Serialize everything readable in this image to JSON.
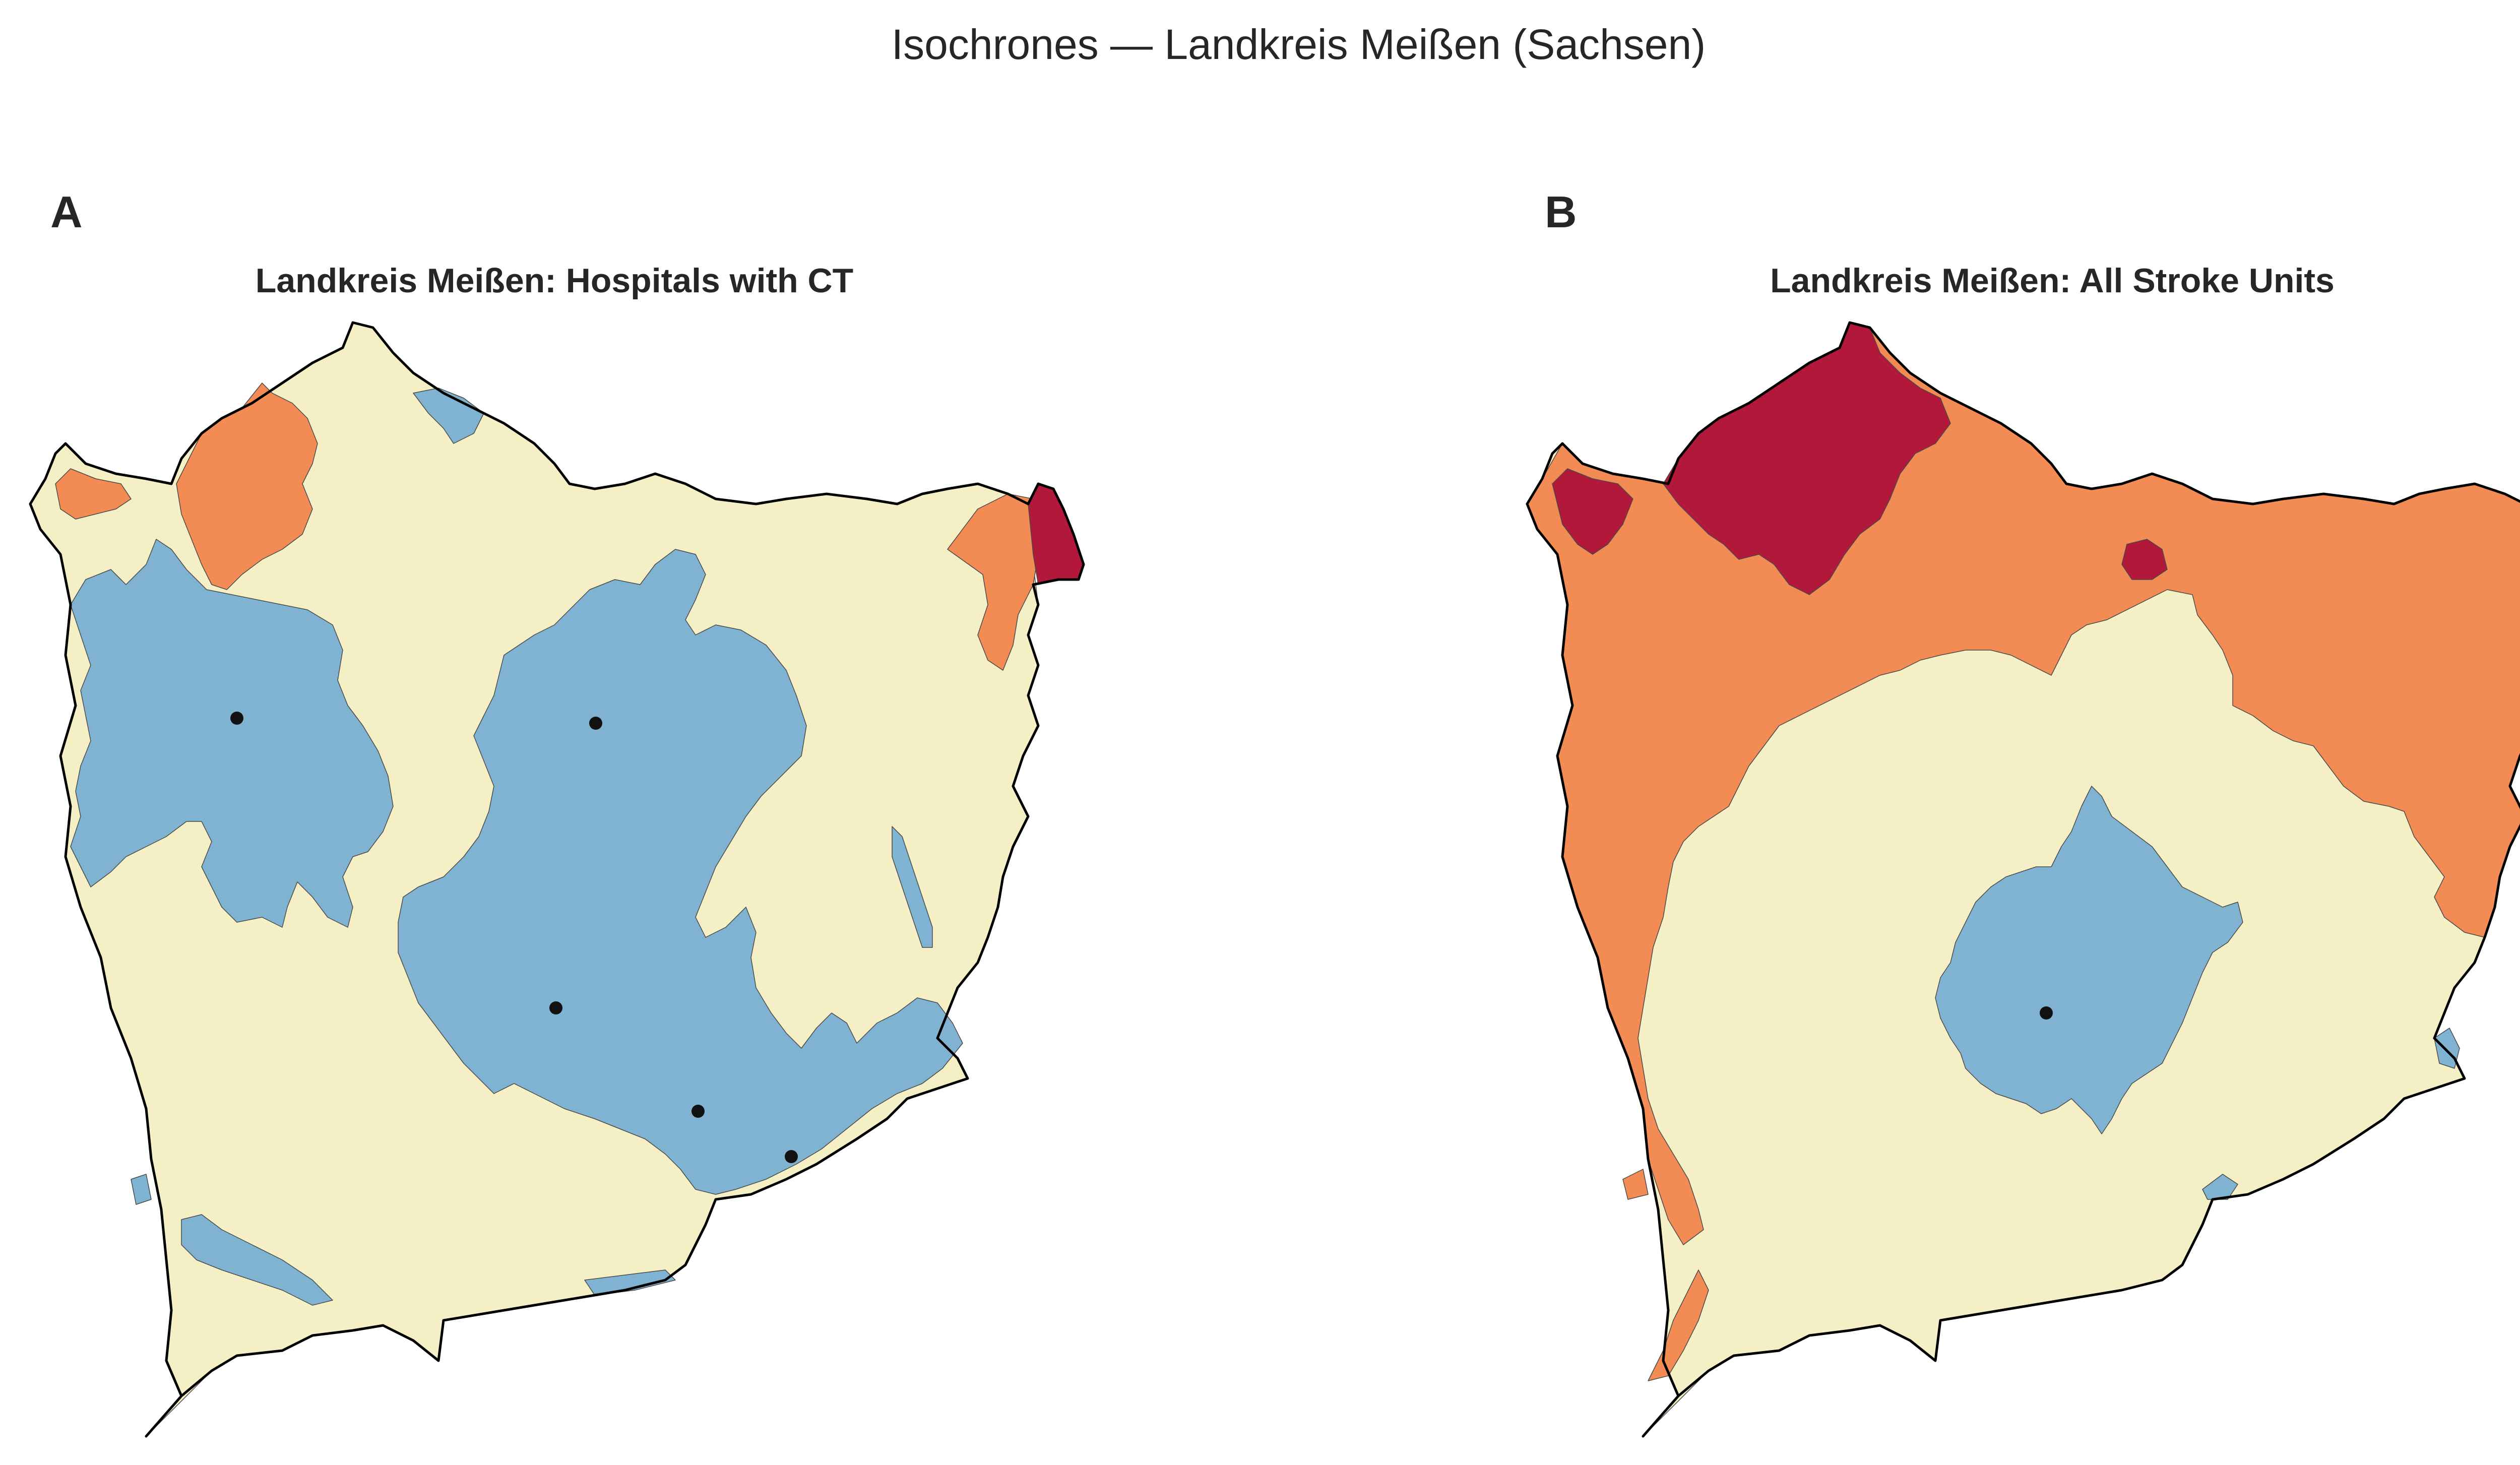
{
  "figure": {
    "title": "Isochrones — Landkreis Meißen (Sachsen)"
  },
  "colors": {
    "fast": "#80b3d1",
    "medium": "#f5efc5",
    "slow": "#f28b54",
    "very_slow": "#b1183a",
    "border": "#000000",
    "facility": "#111111"
  },
  "panels": [
    {
      "letter": "A",
      "title": "Landkreis Meißen: Hospitals with CT",
      "facilities": 5
    },
    {
      "letter": "B",
      "title": "Landkreis Meißen: All Stroke Units",
      "facilities": 1
    }
  ]
}
